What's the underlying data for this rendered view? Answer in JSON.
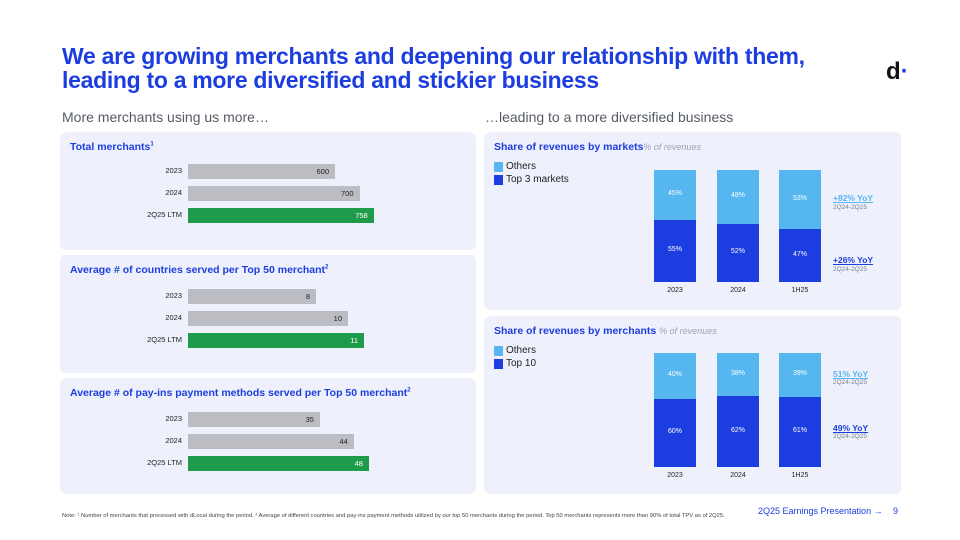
{
  "title": "We are growing merchants and deepening our relationship with them, leading to a more diversified and stickier business",
  "logo": {
    "letter": "d",
    "dot": "·"
  },
  "left_heading": "More merchants using us more…",
  "right_heading": "…leading to a more diversified business",
  "colors": {
    "grey_bar": "#bcbdc2",
    "green_bar": "#1e9b4b",
    "dark_blue": "#1c3de0",
    "light_blue": "#55b6f0",
    "panel": "#eef1fb"
  },
  "chart_data": [
    {
      "type": "bar",
      "orientation": "horizontal",
      "title": "Total merchants",
      "title_sup": "1",
      "categories": [
        "2023",
        "2024",
        "2Q25 LTM"
      ],
      "values": [
        600,
        700,
        758
      ],
      "highlight": "2Q25 LTM",
      "xlim": [
        0,
        800
      ]
    },
    {
      "type": "bar",
      "orientation": "horizontal",
      "title": "Average # of countries served per Top 50 merchant",
      "title_sup": "2",
      "categories": [
        "2023",
        "2024",
        "2Q25 LTM"
      ],
      "values": [
        8,
        10,
        11
      ],
      "highlight": "2Q25 LTM",
      "xlim": [
        0,
        12
      ]
    },
    {
      "type": "bar",
      "orientation": "horizontal",
      "title": "Average # of pay-ins payment methods served per Top 50 merchant",
      "title_sup": "2",
      "categories": [
        "2023",
        "2024",
        "2Q25 LTM"
      ],
      "values": [
        35,
        44,
        48
      ],
      "highlight": "2Q25 LTM",
      "xlim": [
        0,
        52
      ]
    },
    {
      "type": "bar",
      "stacked": true,
      "percent": true,
      "title": "Share of revenues by markets",
      "subtitle": "% of revenues",
      "categories": [
        "2023",
        "2024",
        "1H25"
      ],
      "series": [
        {
          "name": "Top 3 markets",
          "values": [
            55,
            52,
            47
          ],
          "labels": [
            "55%",
            "52%",
            "47%"
          ]
        },
        {
          "name": "Others",
          "values": [
            45,
            48,
            53
          ],
          "labels": [
            "45%",
            "48%",
            "53%"
          ]
        }
      ],
      "legend": [
        "Others",
        "Top 3 markets"
      ],
      "annotations": [
        {
          "series": "Others",
          "text": "+82% YoY",
          "sub": "2Q24-2Q25"
        },
        {
          "series": "Top 3 markets",
          "text": "+26% YoY",
          "sub": "2Q24-2Q25"
        }
      ]
    },
    {
      "type": "bar",
      "stacked": true,
      "percent": true,
      "title": "Share of revenues by merchants",
      "subtitle": "% of revenues",
      "categories": [
        "2023",
        "2024",
        "1H25"
      ],
      "series": [
        {
          "name": "Top 10",
          "values": [
            60,
            62,
            61
          ],
          "labels": [
            "60%",
            "62%",
            "61%"
          ]
        },
        {
          "name": "Others",
          "values": [
            40,
            38,
            39
          ],
          "labels": [
            "40%",
            "38%",
            "39%"
          ]
        }
      ],
      "legend": [
        "Others",
        "Top 10"
      ],
      "annotations": [
        {
          "series": "Others",
          "text": "51% YoY",
          "sub": "2Q24-2Q25"
        },
        {
          "series": "Top 10",
          "text": "49% YoY",
          "sub": "2Q24-2Q25"
        }
      ]
    }
  ],
  "note": "Note: ¹ Number of merchants that processed with dLocal during the period. ² Average of different countries and pay-ins payment methods utilized by our top 50 merchants during the period. Top 50 merchants represents more than 90% of total TPV as of 2Q25.",
  "footer": {
    "label": "2Q25 Earnings Presentation →",
    "page": "9"
  }
}
